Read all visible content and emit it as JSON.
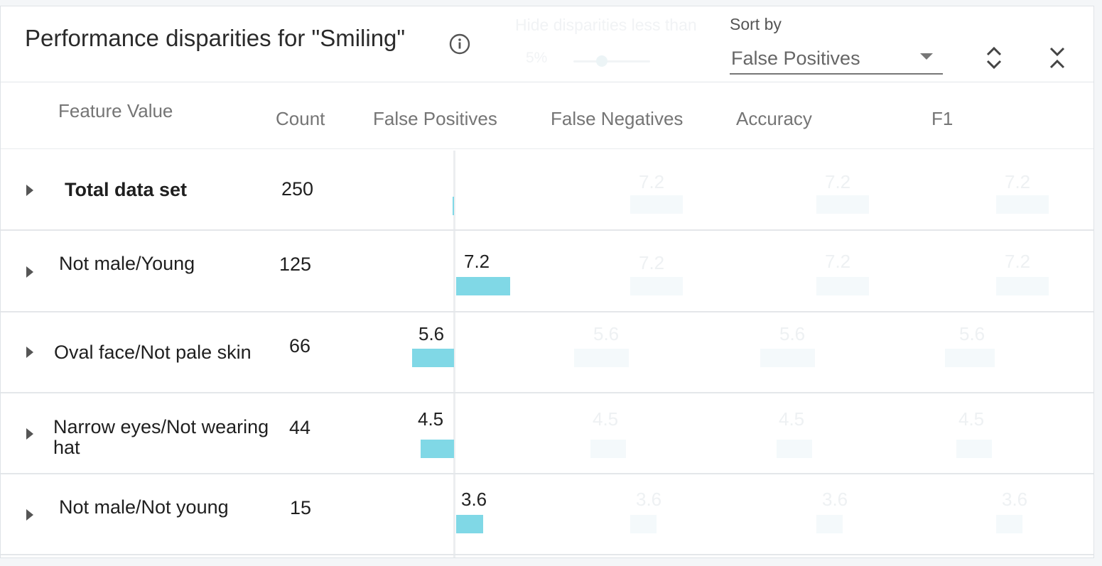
{
  "header": {
    "title": "Performance disparities for \"Smiling\"",
    "hide_label": "Hide disparities less than",
    "hide_value": "5%",
    "sort_label": "Sort by",
    "sort_value": "False Positives"
  },
  "columns": [
    "Feature Value",
    "Count",
    "False Positives",
    "False Negatives",
    "Accuracy",
    "F1"
  ],
  "rows": [
    {
      "feature": "Total data set",
      "bold": true,
      "count": "250",
      "false_positives": 0,
      "false_negatives": "7.2",
      "accuracy": "7.2",
      "f1": "7.2"
    },
    {
      "feature": "Not male/Young",
      "count": "125",
      "false_positives": 7.2,
      "fp_label": "7.2",
      "false_negatives": "7.2",
      "accuracy": "7.2",
      "f1": "7.2"
    },
    {
      "feature": "Oval face/Not pale skin",
      "count": "66",
      "false_positives": -5.6,
      "fp_label": "5.6",
      "false_negatives": "5.6",
      "accuracy": "5.6",
      "f1": "5.6"
    },
    {
      "feature": "Narrow eyes/Not wearing hat",
      "count": "44",
      "false_positives": -4.5,
      "fp_label": "4.5",
      "false_negatives": "4.5",
      "accuracy": "4.5",
      "f1": "4.5"
    },
    {
      "feature": "Not male/Not young",
      "count": "15",
      "false_positives": 3.6,
      "fp_label": "3.6",
      "false_negatives": "3.6",
      "accuracy": "3.6",
      "f1": "3.6"
    }
  ],
  "colors": {
    "bar": "#80d8e6",
    "ghost_bar": "#f4f9fb"
  }
}
